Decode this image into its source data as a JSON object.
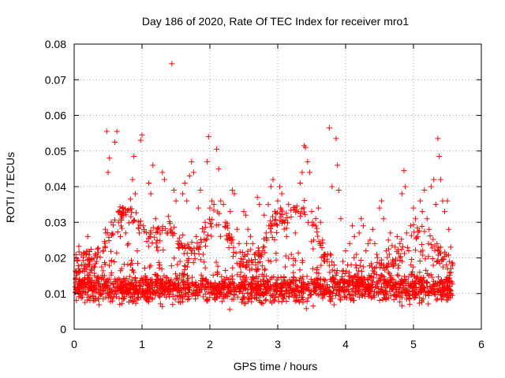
{
  "chart_data": {
    "type": "scatter",
    "title": "Day 186 of 2020, Rate Of TEC Index for receiver mro1",
    "xlabel": "GPS time / hours",
    "ylabel": "ROTI / TECUs",
    "xlim": [
      0,
      6
    ],
    "ylim": [
      0,
      0.08
    ],
    "xticks": [
      0,
      1,
      2,
      3,
      4,
      5,
      6
    ],
    "xtick_labels": [
      "0",
      "1",
      "2",
      "3",
      "4",
      "5",
      "6"
    ],
    "yticks": [
      0,
      0.01,
      0.02,
      0.03,
      0.04,
      0.05,
      0.06,
      0.07,
      0.08
    ],
    "ytick_labels": [
      "0",
      "0.01",
      "0.02",
      "0.03",
      "0.04",
      "0.05",
      "0.06",
      "0.07",
      "0.08"
    ],
    "grid": true,
    "marker": "+",
    "marker_color": "#ff0000",
    "series": [
      {
        "name": "ROTI",
        "points": [
          [
            0.02,
            0.014
          ],
          [
            0.05,
            0.011
          ],
          [
            0.08,
            0.016
          ],
          [
            0.12,
            0.009
          ],
          [
            0.15,
            0.013
          ],
          [
            0.18,
            0.021
          ],
          [
            0.2,
            0.026
          ],
          [
            0.22,
            0.018
          ],
          [
            0.25,
            0.012
          ],
          [
            0.28,
            0.008
          ],
          [
            0.3,
            0.015
          ],
          [
            0.33,
            0.019
          ],
          [
            0.36,
            0.011
          ],
          [
            0.4,
            0.014
          ],
          [
            0.43,
            0.022
          ],
          [
            0.46,
            0.028
          ],
          [
            0.48,
            0.0555
          ],
          [
            0.5,
            0.044
          ],
          [
            0.52,
            0.048
          ],
          [
            0.55,
            0.019
          ],
          [
            0.58,
            0.009
          ],
          [
            0.6,
            0.0525
          ],
          [
            0.63,
            0.0555
          ],
          [
            0.65,
            0.033
          ],
          [
            0.68,
            0.026
          ],
          [
            0.7,
            0.017
          ],
          [
            0.73,
            0.012
          ],
          [
            0.76,
            0.027
          ],
          [
            0.8,
            0.024
          ],
          [
            0.83,
            0.018
          ],
          [
            0.86,
            0.042
          ],
          [
            0.88,
            0.0485
          ],
          [
            0.9,
            0.038
          ],
          [
            0.93,
            0.022
          ],
          [
            0.96,
            0.027
          ],
          [
            0.98,
            0.053
          ],
          [
            1.0,
            0.0545
          ],
          [
            1.02,
            0.029
          ],
          [
            1.05,
            0.014
          ],
          [
            1.08,
            0.009
          ],
          [
            1.1,
            0.041
          ],
          [
            1.13,
            0.038
          ],
          [
            1.16,
            0.046
          ],
          [
            1.2,
            0.031
          ],
          [
            1.23,
            0.023
          ],
          [
            1.26,
            0.018
          ],
          [
            1.3,
            0.044
          ],
          [
            1.33,
            0.042
          ],
          [
            1.36,
            0.027
          ],
          [
            1.4,
            0.013
          ],
          [
            1.44,
            0.0745
          ],
          [
            1.47,
            0.039
          ],
          [
            1.5,
            0.036
          ],
          [
            1.53,
            0.024
          ],
          [
            1.56,
            0.019
          ],
          [
            1.6,
            0.038
          ],
          [
            1.63,
            0.041
          ],
          [
            1.66,
            0.036
          ],
          [
            1.7,
            0.043
          ],
          [
            1.73,
            0.047
          ],
          [
            1.76,
            0.044
          ],
          [
            1.8,
            0.026
          ],
          [
            1.83,
            0.034
          ],
          [
            1.86,
            0.039
          ],
          [
            1.9,
            0.021
          ],
          [
            1.93,
            0.03
          ],
          [
            1.96,
            0.047
          ],
          [
            1.98,
            0.054
          ],
          [
            2.0,
            0.034
          ],
          [
            2.03,
            0.036
          ],
          [
            2.06,
            0.035
          ],
          [
            2.1,
            0.0505
          ],
          [
            2.13,
            0.045
          ],
          [
            2.16,
            0.036
          ],
          [
            2.2,
            0.035
          ],
          [
            2.23,
            0.03
          ],
          [
            2.26,
            0.025
          ],
          [
            2.3,
            0.033
          ],
          [
            2.33,
            0.039
          ],
          [
            2.36,
            0.038
          ],
          [
            2.4,
            0.028
          ],
          [
            2.43,
            0.024
          ],
          [
            2.46,
            0.019
          ],
          [
            2.5,
            0.033
          ],
          [
            2.53,
            0.032
          ],
          [
            2.56,
            0.028
          ],
          [
            2.6,
            0.026
          ],
          [
            2.63,
            0.024
          ],
          [
            2.66,
            0.021
          ],
          [
            2.7,
            0.037
          ],
          [
            2.73,
            0.035
          ],
          [
            2.76,
            0.021
          ],
          [
            2.8,
            0.032
          ],
          [
            2.83,
            0.027
          ],
          [
            2.86,
            0.035
          ],
          [
            2.9,
            0.04
          ],
          [
            2.93,
            0.042
          ],
          [
            2.96,
            0.033
          ],
          [
            3.0,
            0.036
          ],
          [
            3.03,
            0.04
          ],
          [
            3.06,
            0.038
          ],
          [
            3.1,
            0.03
          ],
          [
            3.13,
            0.026
          ],
          [
            3.16,
            0.035
          ],
          [
            3.2,
            0.021
          ],
          [
            3.23,
            0.018
          ],
          [
            3.26,
            0.027
          ],
          [
            3.3,
            0.033
          ],
          [
            3.33,
            0.041
          ],
          [
            3.36,
            0.044
          ],
          [
            3.39,
            0.0515
          ],
          [
            3.41,
            0.051
          ],
          [
            3.44,
            0.047
          ],
          [
            3.47,
            0.044
          ],
          [
            3.5,
            0.033
          ],
          [
            3.53,
            0.025
          ],
          [
            3.56,
            0.029
          ],
          [
            3.6,
            0.034
          ],
          [
            3.63,
            0.03
          ],
          [
            3.66,
            0.025
          ],
          [
            3.7,
            0.021
          ],
          [
            3.73,
            0.019
          ],
          [
            3.76,
            0.0565
          ],
          [
            3.8,
            0.04
          ],
          [
            3.83,
            0.018
          ],
          [
            3.86,
            0.0535
          ],
          [
            3.88,
            0.046
          ],
          [
            3.9,
            0.039
          ],
          [
            3.93,
            0.031
          ],
          [
            3.96,
            0.019
          ],
          [
            4.0,
            0.022
          ],
          [
            4.03,
            0.018
          ],
          [
            4.06,
            0.024
          ],
          [
            4.1,
            0.029
          ],
          [
            4.13,
            0.026
          ],
          [
            4.16,
            0.021
          ],
          [
            4.2,
            0.027
          ],
          [
            4.23,
            0.031
          ],
          [
            4.26,
            0.029
          ],
          [
            4.3,
            0.022
          ],
          [
            4.33,
            0.024
          ],
          [
            4.36,
            0.025
          ],
          [
            4.4,
            0.028
          ],
          [
            4.43,
            0.024
          ],
          [
            4.46,
            0.021
          ],
          [
            4.5,
            0.034
          ],
          [
            4.53,
            0.036
          ],
          [
            4.56,
            0.031
          ],
          [
            4.6,
            0.022
          ],
          [
            4.63,
            0.025
          ],
          [
            4.66,
            0.027
          ],
          [
            4.7,
            0.019
          ],
          [
            4.73,
            0.023
          ],
          [
            4.76,
            0.026
          ],
          [
            4.8,
            0.024
          ],
          [
            4.83,
            0.038
          ],
          [
            4.86,
            0.0445
          ],
          [
            4.88,
            0.04
          ],
          [
            4.9,
            0.027
          ],
          [
            4.93,
            0.022
          ],
          [
            4.96,
            0.029
          ],
          [
            5.0,
            0.034
          ],
          [
            5.03,
            0.031
          ],
          [
            5.06,
            0.026
          ],
          [
            5.1,
            0.036
          ],
          [
            5.13,
            0.033
          ],
          [
            5.16,
            0.039
          ],
          [
            5.2,
            0.031
          ],
          [
            5.23,
            0.028
          ],
          [
            5.26,
            0.04
          ],
          [
            5.3,
            0.042
          ],
          [
            5.33,
            0.035
          ],
          [
            5.36,
            0.0535
          ],
          [
            5.38,
            0.0485
          ],
          [
            5.4,
            0.042
          ],
          [
            5.43,
            0.036
          ],
          [
            5.46,
            0.033
          ],
          [
            5.5,
            0.036
          ],
          [
            5.52,
            0.028
          ],
          [
            5.55,
            0.023
          ]
        ]
      }
    ],
    "baseline_band": {
      "description": "dense cloud of points between about 0.005 and 0.02 TECUs across 0 to 5.6 hours"
    }
  }
}
